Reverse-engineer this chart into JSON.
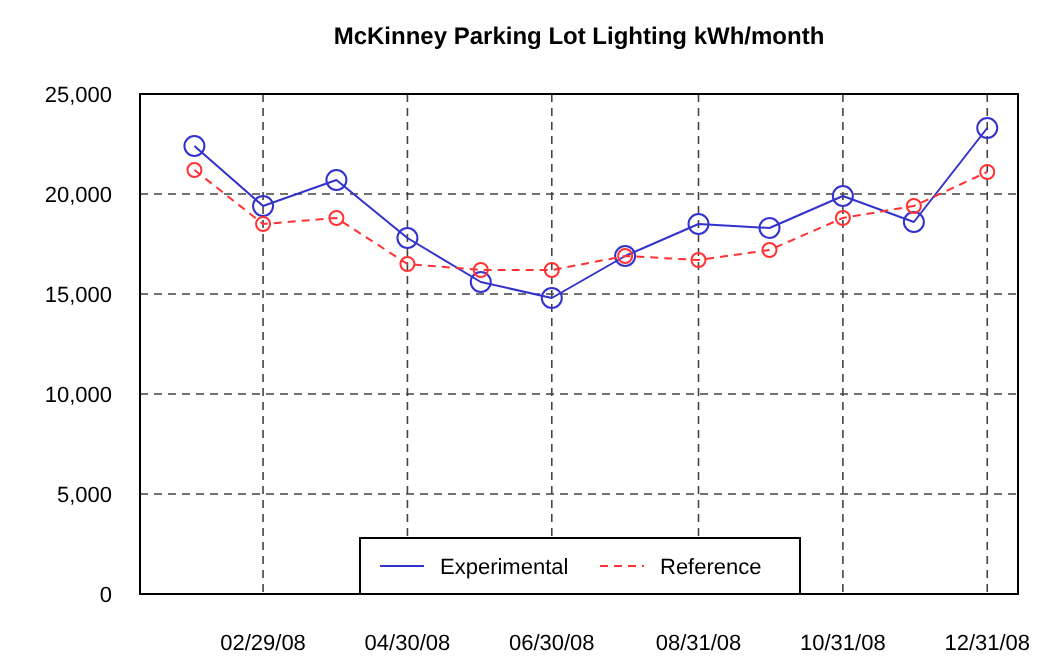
{
  "chart_data": {
    "type": "line",
    "title": "McKinney Parking Lot Lighting kWh/month",
    "x": [
      "2008-01-31",
      "2008-02-29",
      "2008-03-31",
      "2008-04-30",
      "2008-05-31",
      "2008-06-30",
      "2008-07-31",
      "2008-08-31",
      "2008-09-30",
      "2008-10-31",
      "2008-11-30",
      "2008-12-31"
    ],
    "series": [
      {
        "name": "Experimental",
        "color": "#3333cc",
        "line_style": "solid",
        "values": [
          22400,
          19400,
          20700,
          17800,
          15600,
          14800,
          16900,
          18500,
          18300,
          19900,
          18600,
          23300
        ]
      },
      {
        "name": "Reference",
        "color": "#ff3333",
        "line_style": "dashed",
        "values": [
          21200,
          18500,
          18800,
          16500,
          16200,
          16200,
          16900,
          16700,
          17200,
          18800,
          19400,
          21100
        ]
      }
    ],
    "xlim": [
      "2008-01-08",
      "2009-01-13"
    ],
    "xticks": [
      {
        "value": "2008-02-29",
        "label": "02/29/08"
      },
      {
        "value": "2008-04-30",
        "label": "04/30/08"
      },
      {
        "value": "2008-06-30",
        "label": "06/30/08"
      },
      {
        "value": "2008-08-31",
        "label": "08/31/08"
      },
      {
        "value": "2008-10-31",
        "label": "10/31/08"
      },
      {
        "value": "2008-12-31",
        "label": "12/31/08"
      }
    ],
    "ylim": [
      0,
      25000
    ],
    "yticks": [
      {
        "value": 0,
        "label": "0"
      },
      {
        "value": 5000,
        "label": "5,000"
      },
      {
        "value": 10000,
        "label": "10,000"
      },
      {
        "value": 15000,
        "label": "15,000"
      },
      {
        "value": 20000,
        "label": "20,000"
      },
      {
        "value": 25000,
        "label": "25,000"
      }
    ],
    "grid": true,
    "legend": "bottom",
    "marker": "circle"
  }
}
